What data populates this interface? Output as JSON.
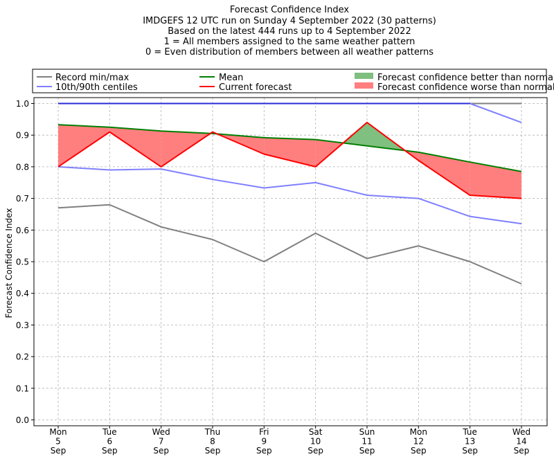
{
  "chart_data": {
    "type": "line",
    "title_lines": [
      "Forecast Confidence Index",
      "IMDGEFS 12 UTC run on Sunday 4 September 2022 (30 patterns)",
      "Based on the latest 444 runs up to 4 September 2022",
      "1 = All members assigned to the same weather pattern",
      "0 = Even distribution of members between all weather patterns"
    ],
    "ylabel": "Forecast Confidence Index",
    "xlabel": "",
    "ylim": [
      0,
      1
    ],
    "yticks": [
      "0.0",
      "0.1",
      "0.2",
      "0.3",
      "0.4",
      "0.5",
      "0.6",
      "0.7",
      "0.8",
      "0.9",
      "1.0"
    ],
    "categories": [
      [
        "Mon",
        "5",
        "Sep"
      ],
      [
        "Tue",
        "6",
        "Sep"
      ],
      [
        "Wed",
        "7",
        "Sep"
      ],
      [
        "Thu",
        "8",
        "Sep"
      ],
      [
        "Fri",
        "9",
        "Sep"
      ],
      [
        "Sat",
        "10",
        "Sep"
      ],
      [
        "Sun",
        "11",
        "Sep"
      ],
      [
        "Mon",
        "12",
        "Sep"
      ],
      [
        "Tue",
        "13",
        "Sep"
      ],
      [
        "Wed",
        "14",
        "Sep"
      ]
    ],
    "grid": true,
    "series": [
      {
        "name": "Record max",
        "color": "#7f7f7f",
        "values": [
          1.0,
          1.0,
          1.0,
          1.0,
          1.0,
          1.0,
          1.0,
          1.0,
          1.0,
          1.0
        ]
      },
      {
        "name": "Record min",
        "color": "#7f7f7f",
        "values": [
          0.67,
          0.68,
          0.61,
          0.57,
          0.5,
          0.59,
          0.51,
          0.55,
          0.5,
          0.43
        ]
      },
      {
        "name": "90th centile",
        "color": "#7f7fff",
        "values": [
          1.0,
          1.0,
          1.0,
          1.0,
          1.0,
          1.0,
          1.0,
          1.0,
          1.0,
          0.94
        ]
      },
      {
        "name": "10th centile",
        "color": "#7f7fff",
        "values": [
          0.8,
          0.79,
          0.793,
          0.76,
          0.733,
          0.75,
          0.71,
          0.7,
          0.643,
          0.62
        ]
      },
      {
        "name": "Mean",
        "color": "#007f00",
        "values": [
          0.933,
          0.925,
          0.913,
          0.905,
          0.892,
          0.886,
          0.866,
          0.846,
          0.815,
          0.785
        ]
      },
      {
        "name": "Current forecast",
        "color": "#ff0000",
        "values": [
          0.8,
          0.91,
          0.8,
          0.91,
          0.84,
          0.8,
          0.94,
          0.82,
          0.71,
          0.7
        ]
      }
    ],
    "fills": {
      "better_color": "#7fbf7f",
      "worse_color": "#ff7f7f"
    },
    "legend": {
      "placement": "top",
      "items": [
        {
          "label": "Record min/max",
          "kind": "line",
          "color": "#7f7f7f"
        },
        {
          "label": "10th/90th centiles",
          "kind": "line",
          "color": "#7f7fff"
        },
        {
          "label": "Mean",
          "kind": "line",
          "color": "#007f00"
        },
        {
          "label": "Current forecast",
          "kind": "line",
          "color": "#ff0000"
        },
        {
          "label": "Forecast confidence better than normal",
          "kind": "patch",
          "color": "#7fbf7f"
        },
        {
          "label": "Forecast confidence worse than normal",
          "kind": "patch",
          "color": "#ff7f7f"
        }
      ]
    }
  }
}
